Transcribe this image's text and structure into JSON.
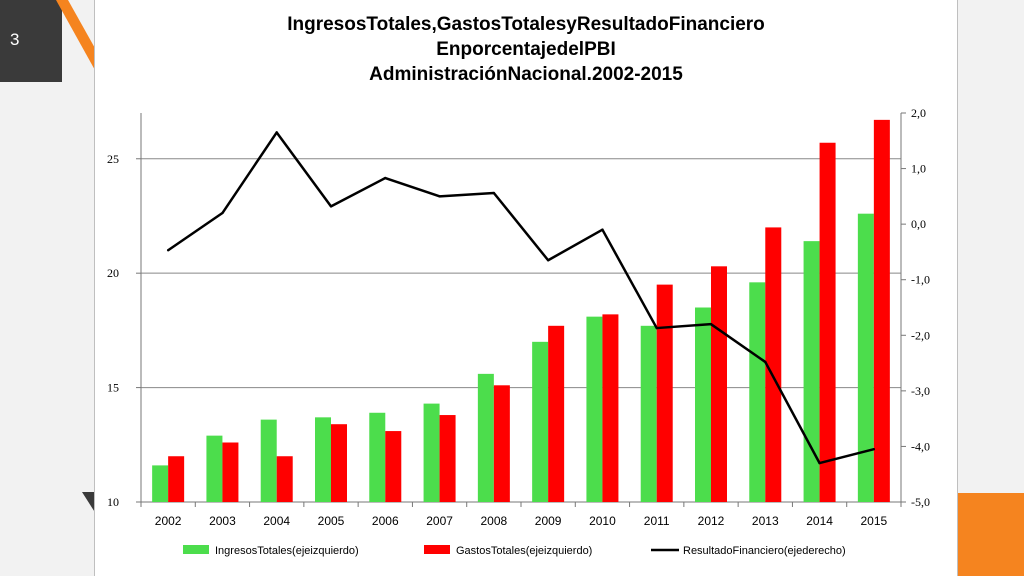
{
  "slide": {
    "number": "3"
  },
  "colors": {
    "ingresos": "#4cdd4c",
    "gastos": "#ff0000",
    "resultado": "#000000",
    "accent": "#f5841f",
    "dark": "#3a3a3a"
  },
  "chart_data": {
    "type": "bar",
    "title_lines": [
      "Ingresos\u0014Totales,\u0014Gastos\u0014Totales\u0014y\u0014Resultado\u0014Financiero",
      "En\u0014porcentaje\u0014del\u0014PBI",
      "Administración\u0014Nacional.\u00142002-2015"
    ],
    "categories": [
      "2002",
      "2003",
      "2004",
      "2005",
      "2006",
      "2007",
      "2008",
      "2009",
      "2010",
      "2011",
      "2012",
      "2013",
      "2014",
      "2015"
    ],
    "left_axis": {
      "min": 10,
      "max": 27,
      "ticks": [
        10,
        15,
        20,
        25
      ],
      "tick_labels": [
        "10",
        "15",
        "20",
        "25"
      ]
    },
    "right_axis": {
      "min": -5,
      "max": 2,
      "ticks": [
        -5,
        -4,
        -3,
        -2,
        -1,
        0,
        1,
        2
      ],
      "tick_labels": [
        "-5,0",
        "-4,0",
        "-3,0",
        "-2,0",
        "-1,0",
        "0,0",
        "1,0",
        "2,0"
      ]
    },
    "grid": {
      "horizontal": true,
      "lines": [
        15,
        20,
        25
      ]
    },
    "legend_position": "bottom",
    "series": [
      {
        "name": "Ingresos\u0014Totales\u0014(eje\u0014izquierdo)",
        "kind": "bar",
        "axis": "left",
        "color": "#4cdd4c",
        "values": [
          11.6,
          12.9,
          13.6,
          13.7,
          13.9,
          14.3,
          15.6,
          17.0,
          18.1,
          17.7,
          18.5,
          19.6,
          21.4,
          22.6
        ]
      },
      {
        "name": "Gastos\u0014Totales\u0014(eje\u0014izquierdo)",
        "kind": "bar",
        "axis": "left",
        "color": "#ff0000",
        "values": [
          12.0,
          12.6,
          12.0,
          13.4,
          13.1,
          13.8,
          15.1,
          17.7,
          18.2,
          19.5,
          20.3,
          22.0,
          25.7,
          26.7
        ]
      },
      {
        "name": "Resultado\u0014Financiero\u0014(eje\u0014derecho)",
        "kind": "line",
        "axis": "right",
        "color": "#000000",
        "values": [
          -0.47,
          0.2,
          1.65,
          0.32,
          0.83,
          0.5,
          0.56,
          -0.65,
          -0.1,
          -1.87,
          -1.8,
          -2.48,
          -4.3,
          -4.05
        ]
      }
    ]
  }
}
